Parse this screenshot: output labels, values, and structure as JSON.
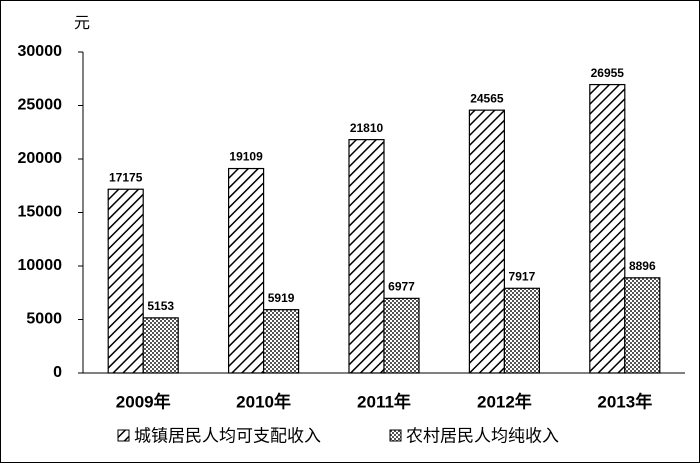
{
  "chart_data": {
    "type": "bar",
    "y_unit": "元",
    "categories": [
      "2009年",
      "2010年",
      "2011年",
      "2012年",
      "2013年"
    ],
    "series": [
      {
        "name": "城镇居民人均可支配收入",
        "color": "#000000",
        "pattern": "diagonal",
        "values": [
          17175,
          19109,
          21810,
          24565,
          26955
        ]
      },
      {
        "name": "农村居民人均纯收入",
        "color": "#000000",
        "pattern": "crosshatch",
        "values": [
          5153,
          5919,
          6977,
          7917,
          8896
        ]
      }
    ],
    "ylim": [
      0,
      30000
    ],
    "yticks": [
      0,
      5000,
      10000,
      15000,
      20000,
      25000,
      30000
    ],
    "grid": false
  }
}
